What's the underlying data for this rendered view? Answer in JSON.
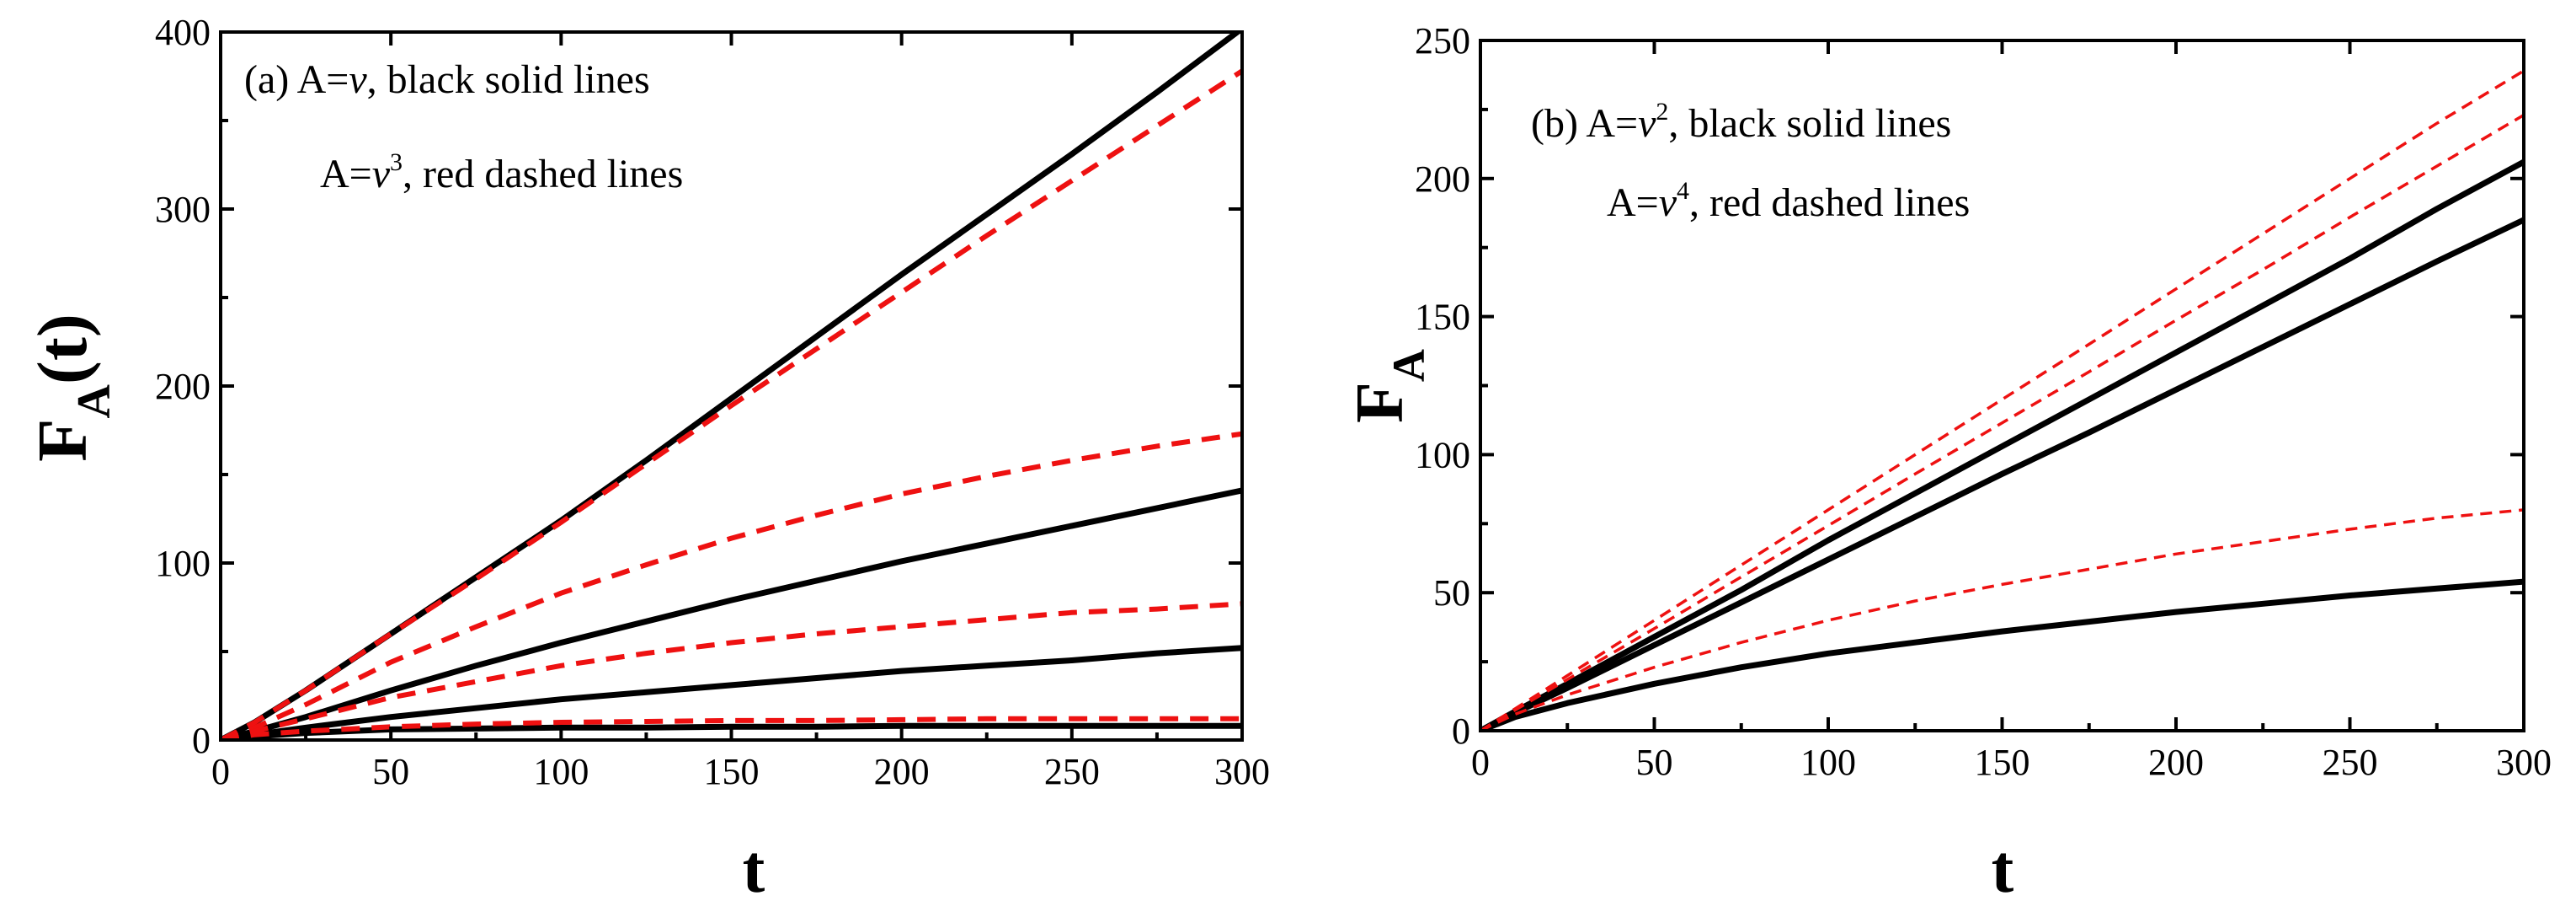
{
  "chart_data": [
    {
      "type": "line",
      "panel": "a",
      "xlabel": "t",
      "ylabel_main": "F",
      "ylabel_sub": "A",
      "ylabel_tail": "(t)",
      "xlim": [
        0,
        300
      ],
      "ylim": [
        0,
        400
      ],
      "x_ticks": [
        "0",
        "50",
        "100",
        "150",
        "200",
        "250",
        "300"
      ],
      "y_ticks": [
        "0",
        "100",
        "200",
        "300",
        "400"
      ],
      "legend": [
        {
          "prefix": "(a) A=",
          "var": "ν",
          "sup": "",
          "suffix": ", black solid lines"
        },
        {
          "prefix": "A=",
          "var": "ν",
          "sup": "3",
          "suffix": ", red dashed lines"
        }
      ],
      "x": [
        0,
        10,
        25,
        50,
        75,
        100,
        125,
        150,
        175,
        200,
        225,
        250,
        275,
        300
      ],
      "series": [
        {
          "name": "A=ν (1)",
          "color": "#000000",
          "style": "solid",
          "values": [
            0,
            10,
            28,
            60,
            92,
            124,
            158,
            193,
            228,
            263,
            297,
            331,
            366,
            402
          ]
        },
        {
          "name": "A=ν (2)",
          "color": "#000000",
          "style": "solid",
          "values": [
            0,
            5,
            13,
            28,
            42,
            55,
            67,
            79,
            90,
            101,
            111,
            121,
            131,
            141
          ]
        },
        {
          "name": "A=ν (3)",
          "color": "#000000",
          "style": "solid",
          "values": [
            0,
            3,
            7,
            13,
            18,
            23,
            27,
            31,
            35,
            39,
            42,
            45,
            49,
            52
          ]
        },
        {
          "name": "A=ν (4)",
          "color": "#000000",
          "style": "solid",
          "values": [
            0,
            2,
            4,
            6,
            6.5,
            7,
            7,
            7.5,
            7.5,
            8,
            8,
            8,
            8,
            8
          ]
        },
        {
          "name": "A=ν³ (1)",
          "color": "#ee1111",
          "style": "dashed",
          "values": [
            0,
            10,
            28,
            60,
            91,
            123,
            156,
            189,
            221,
            253,
            285,
            316,
            347,
            378
          ]
        },
        {
          "name": "A=ν³ (2)",
          "color": "#ee1111",
          "style": "dashed",
          "values": [
            0,
            7,
            20,
            44,
            64,
            83,
            99,
            114,
            127,
            139,
            149,
            158,
            166,
            173
          ]
        },
        {
          "name": "A=ν³ (3)",
          "color": "#ee1111",
          "style": "dashed",
          "values": [
            0,
            5,
            12,
            24,
            33,
            42,
            49,
            55,
            60,
            64,
            68,
            72,
            74,
            77
          ]
        },
        {
          "name": "A=ν³ (4)",
          "color": "#ee1111",
          "style": "dashed",
          "values": [
            0,
            3,
            5,
            7.5,
            9,
            10,
            10.5,
            11,
            11,
            11.5,
            12,
            12,
            12,
            12
          ]
        }
      ]
    },
    {
      "type": "line",
      "panel": "b",
      "xlabel": "t",
      "ylabel_main": "F",
      "ylabel_sub": "A",
      "ylabel_tail": "",
      "xlim": [
        0,
        300
      ],
      "ylim": [
        0,
        250
      ],
      "x_ticks": [
        "0",
        "50",
        "100",
        "150",
        "200",
        "250",
        "300"
      ],
      "y_ticks": [
        "0",
        "50",
        "100",
        "150",
        "200",
        "250"
      ],
      "legend": [
        {
          "prefix": "(b) A=",
          "var": "ν",
          "sup": "2",
          "suffix": ", black solid lines"
        },
        {
          "prefix": "A=",
          "var": "ν",
          "sup": "4",
          "suffix": ", red dashed lines"
        }
      ],
      "x": [
        0,
        10,
        25,
        50,
        75,
        100,
        125,
        150,
        175,
        200,
        225,
        250,
        275,
        300
      ],
      "series": [
        {
          "name": "A=ν² (1)",
          "color": "#000000",
          "style": "solid",
          "values": [
            0,
            7,
            17,
            34,
            51,
            69,
            86,
            103,
            120,
            137,
            154,
            171,
            189,
            206
          ]
        },
        {
          "name": "A=ν² (2)",
          "color": "#000000",
          "style": "solid",
          "values": [
            0,
            6.5,
            15.5,
            31,
            46.5,
            62,
            77.5,
            93,
            108,
            123.5,
            139,
            154.5,
            170,
            185
          ]
        },
        {
          "name": "A=ν² (3)",
          "color": "#000000",
          "style": "solid",
          "values": [
            0,
            5,
            10,
            17,
            23,
            28,
            32,
            36,
            39.5,
            43,
            46,
            49,
            51.5,
            54
          ]
        },
        {
          "name": "A=ν⁴ (1)",
          "color": "#ee1111",
          "style": "dashed",
          "values": [
            0,
            8,
            20,
            40,
            60,
            80,
            100,
            120,
            140,
            160,
            180,
            200,
            220,
            239
          ]
        },
        {
          "name": "A=ν⁴ (2)",
          "color": "#ee1111",
          "style": "dashed",
          "values": [
            0,
            7.5,
            18.6,
            37,
            55.7,
            74.3,
            93,
            111.5,
            130,
            148.7,
            167,
            186,
            204.5,
            223
          ]
        },
        {
          "name": "A=ν⁴ (3)",
          "color": "#ee1111",
          "style": "dashed",
          "values": [
            0,
            6,
            13,
            23,
            32,
            40,
            47,
            53,
            58.5,
            64,
            68.5,
            73,
            77,
            80
          ]
        }
      ]
    }
  ]
}
